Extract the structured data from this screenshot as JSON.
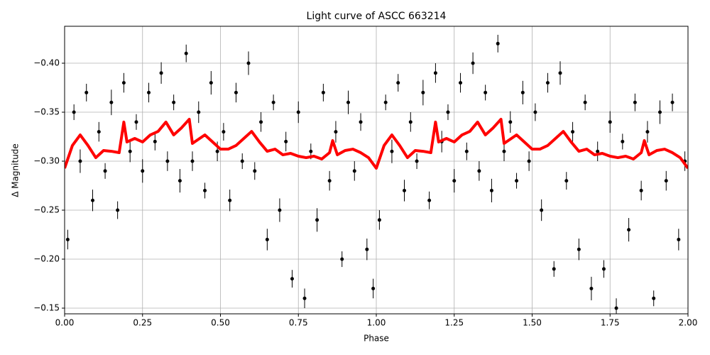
{
  "chart_data": {
    "type": "scatter",
    "title": "Light curve of ASCC 663214",
    "xlabel": "Phase",
    "ylabel": "Δ Magnitude",
    "xlim": [
      0,
      2
    ],
    "ylim": [
      -0.1442,
      -0.4377
    ],
    "grid": true,
    "xticks": [
      {
        "value": 0,
        "label": "0.00"
      },
      {
        "value": 0.25,
        "label": "0.25"
      },
      {
        "value": 0.5,
        "label": "0.50"
      },
      {
        "value": 0.75,
        "label": "0.75"
      },
      {
        "value": 1,
        "label": "1.00"
      },
      {
        "value": 1.25,
        "label": "1.25"
      },
      {
        "value": 1.5,
        "label": "1.50"
      },
      {
        "value": 1.75,
        "label": "1.75"
      },
      {
        "value": 2,
        "label": "2.00"
      }
    ],
    "yticks": [
      {
        "value": -0.4,
        "label": "−0.40"
      },
      {
        "value": -0.35,
        "label": "−0.35"
      },
      {
        "value": -0.3,
        "label": "−0.30"
      },
      {
        "value": -0.25,
        "label": "−0.25"
      },
      {
        "value": -0.2,
        "label": "−0.20"
      },
      {
        "value": -0.15,
        "label": "−0.15"
      }
    ],
    "series": [
      {
        "kind": "errorbar",
        "color": "#000000",
        "x": [
          0.01,
          0.03,
          0.05,
          0.07,
          0.09,
          0.11,
          0.13,
          0.15,
          0.17,
          0.19,
          0.21,
          0.23,
          0.25,
          0.27,
          0.29,
          0.31,
          0.33,
          0.35,
          0.37,
          0.39,
          0.41,
          0.43,
          0.45,
          0.47,
          0.49,
          0.51,
          0.53,
          0.55,
          0.57,
          0.59,
          0.61,
          0.63,
          0.65,
          0.67,
          0.69,
          0.71,
          0.73,
          0.75,
          0.77,
          0.79,
          0.81,
          0.83,
          0.85,
          0.87,
          0.89,
          0.91,
          0.93,
          0.95,
          0.97,
          0.99,
          1.01,
          1.03,
          1.05,
          1.07,
          1.09,
          1.11,
          1.13,
          1.15,
          1.17,
          1.19,
          1.21,
          1.23,
          1.25,
          1.27,
          1.29,
          1.31,
          1.33,
          1.35,
          1.37,
          1.39,
          1.41,
          1.43,
          1.45,
          1.47,
          1.49,
          1.51,
          1.53,
          1.55,
          1.57,
          1.59,
          1.61,
          1.63,
          1.65,
          1.67,
          1.69,
          1.71,
          1.73,
          1.75,
          1.77,
          1.79,
          1.81,
          1.83,
          1.85,
          1.87,
          1.89,
          1.91,
          1.93,
          1.95,
          1.97,
          1.99
        ],
        "values": [
          -0.22,
          -0.35,
          -0.3,
          -0.37,
          -0.26,
          -0.33,
          -0.29,
          -0.36,
          -0.25,
          -0.38,
          -0.31,
          -0.34,
          -0.29,
          -0.37,
          -0.32,
          -0.39,
          -0.3,
          -0.36,
          -0.28,
          -0.41,
          -0.3,
          -0.35,
          -0.27,
          -0.38,
          -0.31,
          -0.33,
          -0.26,
          -0.37,
          -0.3,
          -0.4,
          -0.29,
          -0.34,
          -0.22,
          -0.36,
          -0.25,
          -0.32,
          -0.18,
          -0.35,
          -0.16,
          -0.31,
          -0.24,
          -0.37,
          -0.28,
          -0.33,
          -0.2,
          -0.36,
          -0.29,
          -0.34,
          -0.21,
          -0.17,
          -0.24,
          -0.36,
          -0.31,
          -0.38,
          -0.27,
          -0.34,
          -0.3,
          -0.37,
          -0.26,
          -0.39,
          -0.32,
          -0.35,
          -0.28,
          -0.38,
          -0.31,
          -0.4,
          -0.29,
          -0.37,
          -0.27,
          -0.42,
          -0.31,
          -0.34,
          -0.28,
          -0.37,
          -0.3,
          -0.35,
          -0.25,
          -0.38,
          -0.19,
          -0.39,
          -0.28,
          -0.33,
          -0.21,
          -0.36,
          -0.17,
          -0.31,
          -0.19,
          -0.34,
          -0.15,
          -0.32,
          -0.23,
          -0.36,
          -0.27,
          -0.33,
          -0.16,
          -0.35,
          -0.28,
          -0.36,
          -0.22,
          -0.3
        ],
        "yerr": [
          0.01,
          0.008,
          0.012,
          0.009,
          0.011,
          0.01,
          0.008,
          0.013,
          0.009,
          0.01,
          0.011,
          0.008,
          0.012,
          0.01,
          0.009,
          0.011,
          0.01,
          0.008,
          0.012,
          0.009,
          0.01,
          0.011,
          0.008,
          0.012,
          0.01,
          0.009,
          0.011,
          0.01,
          0.008,
          0.012,
          0.009,
          0.01,
          0.011,
          0.008,
          0.012,
          0.01,
          0.009,
          0.011,
          0.01,
          0.008,
          0.012,
          0.009,
          0.01,
          0.011,
          0.008,
          0.012,
          0.01,
          0.009,
          0.011,
          0.01,
          0.01,
          0.008,
          0.012,
          0.009,
          0.011,
          0.01,
          0.008,
          0.013,
          0.009,
          0.01,
          0.011,
          0.008,
          0.012,
          0.01,
          0.009,
          0.011,
          0.01,
          0.008,
          0.012,
          0.009,
          0.01,
          0.011,
          0.008,
          0.012,
          0.01,
          0.009,
          0.011,
          0.01,
          0.008,
          0.012,
          0.009,
          0.01,
          0.011,
          0.008,
          0.012,
          0.01,
          0.009,
          0.011,
          0.01,
          0.008,
          0.012,
          0.009,
          0.01,
          0.011,
          0.008,
          0.012,
          0.01,
          0.009,
          0.011,
          0.01
        ]
      },
      {
        "kind": "line",
        "color": "#ff0000",
        "x": [
          0,
          0.025,
          0.05,
          0.075,
          0.1,
          0.125,
          0.15,
          0.175,
          0.19,
          0.2,
          0.225,
          0.25,
          0.275,
          0.3,
          0.325,
          0.35,
          0.375,
          0.4,
          0.41,
          0.45,
          0.475,
          0.5,
          0.525,
          0.55,
          0.575,
          0.6,
          0.625,
          0.65,
          0.675,
          0.7,
          0.725,
          0.75,
          0.775,
          0.8,
          0.825,
          0.85,
          0.86,
          0.875,
          0.9,
          0.925,
          0.95,
          0.975,
          1.0,
          1.025,
          1.05,
          1.075,
          1.1,
          1.125,
          1.15,
          1.175,
          1.19,
          1.2,
          1.225,
          1.25,
          1.275,
          1.3,
          1.325,
          1.35,
          1.375,
          1.4,
          1.41,
          1.45,
          1.475,
          1.5,
          1.525,
          1.55,
          1.575,
          1.6,
          1.625,
          1.65,
          1.675,
          1.7,
          1.725,
          1.75,
          1.775,
          1.8,
          1.825,
          1.85,
          1.86,
          1.875,
          1.9,
          1.925,
          1.95,
          1.975,
          2.0
        ],
        "values": [
          -0.2928,
          -0.316,
          -0.3268,
          -0.316,
          -0.3036,
          -0.3109,
          -0.3101,
          -0.3087,
          -0.3399,
          -0.3196,
          -0.3232,
          -0.3196,
          -0.3268,
          -0.3304,
          -0.3399,
          -0.3268,
          -0.334,
          -0.3428,
          -0.3181,
          -0.3268,
          -0.3196,
          -0.3123,
          -0.3123,
          -0.316,
          -0.3232,
          -0.3304,
          -0.3196,
          -0.3101,
          -0.3123,
          -0.3065,
          -0.308,
          -0.3051,
          -0.3036,
          -0.3051,
          -0.3022,
          -0.3087,
          -0.321,
          -0.3065,
          -0.3109,
          -0.3123,
          -0.3087,
          -0.3036,
          -0.2928,
          -0.316,
          -0.3268,
          -0.316,
          -0.3036,
          -0.3109,
          -0.3101,
          -0.3087,
          -0.3399,
          -0.3196,
          -0.3232,
          -0.3196,
          -0.3268,
          -0.3304,
          -0.3399,
          -0.3268,
          -0.334,
          -0.3428,
          -0.3181,
          -0.3268,
          -0.3196,
          -0.3123,
          -0.3123,
          -0.316,
          -0.3232,
          -0.3304,
          -0.3196,
          -0.3101,
          -0.3123,
          -0.3065,
          -0.308,
          -0.3051,
          -0.3036,
          -0.3051,
          -0.3022,
          -0.3087,
          -0.321,
          -0.3065,
          -0.3109,
          -0.3123,
          -0.3087,
          -0.3036,
          -0.2928
        ]
      }
    ]
  }
}
